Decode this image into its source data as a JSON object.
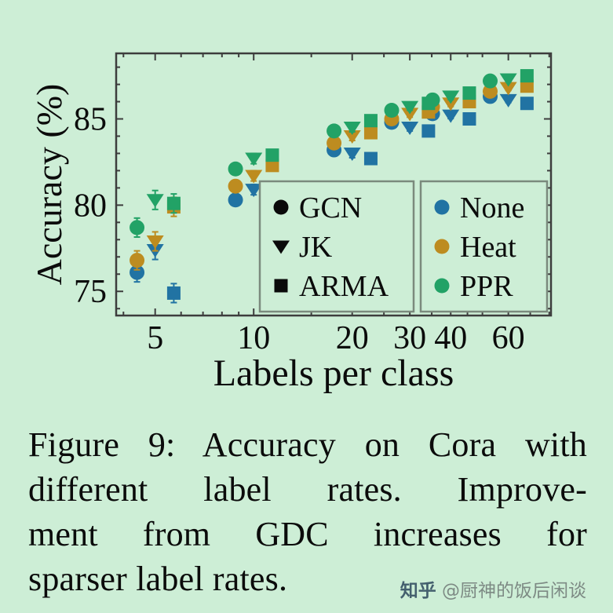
{
  "colors": {
    "background": "#cdeed6",
    "frame": "#3d3d3d",
    "legend_border": "#7b8a7d",
    "text": "#0b0b0b",
    "legend_marker": "#0a0a0a",
    "watermark": "#7d8a84",
    "watermark_logo": "#44606e",
    "none": "#2173a3",
    "heat": "#bd8c20",
    "ppr": "#22a266"
  },
  "figure": {
    "caption_lines": [
      "Figure 9: Accuracy on Cora with",
      "different label rates.  Improve-",
      "ment from GDC increases for",
      "sparser label rates."
    ],
    "watermark_logo": "知乎",
    "watermark_text": " @厨神的饭后闲谈"
  },
  "chart_data": {
    "type": "scatter",
    "title": "",
    "xlabel": "Labels per class",
    "ylabel": "Accuracy (%)",
    "x_scale": "log",
    "xlim": [
      3.8,
      81
    ],
    "ylim": [
      73.6,
      88.8
    ],
    "x_ticks": [
      5,
      10,
      20,
      30,
      40,
      60
    ],
    "y_ticks": [
      75,
      80,
      85
    ],
    "x_minor_ticks": [
      4,
      6,
      7,
      8,
      9,
      15,
      25,
      35,
      45,
      50,
      70,
      80
    ],
    "y_minor_ticks": [
      74,
      76,
      77,
      78,
      79,
      81,
      82,
      83,
      84,
      86,
      87,
      88
    ],
    "categories": [
      5,
      10,
      20,
      30,
      40,
      60
    ],
    "errors": [
      0.55,
      0.3,
      0.25,
      0.2,
      0.18,
      0.15
    ],
    "series": [
      {
        "name": "GCN-None",
        "model": "GCN",
        "diffusion": "None",
        "marker": "circle",
        "color_key": "none",
        "values": [
          76.1,
          80.3,
          83.2,
          84.8,
          85.3,
          86.3
        ]
      },
      {
        "name": "JK-None",
        "model": "JK",
        "diffusion": "None",
        "marker": "triangle",
        "color_key": "none",
        "values": [
          77.4,
          80.9,
          83.0,
          84.5,
          85.2,
          86.1
        ]
      },
      {
        "name": "ARMA-None",
        "model": "ARMA",
        "diffusion": "None",
        "marker": "square",
        "color_key": "none",
        "values": [
          74.9,
          79.8,
          82.7,
          84.3,
          85.0,
          85.9
        ]
      },
      {
        "name": "GCN-Heat",
        "model": "GCN",
        "diffusion": "Heat",
        "marker": "circle",
        "color_key": "heat",
        "values": [
          76.8,
          81.1,
          83.6,
          85.0,
          85.7,
          86.6
        ]
      },
      {
        "name": "JK-Heat",
        "model": "JK",
        "diffusion": "Heat",
        "marker": "triangle",
        "color_key": "heat",
        "values": [
          77.9,
          81.7,
          84.0,
          85.3,
          85.9,
          86.8
        ]
      },
      {
        "name": "ARMA-Heat",
        "model": "ARMA",
        "diffusion": "Heat",
        "marker": "square",
        "color_key": "heat",
        "values": [
          79.9,
          82.3,
          84.2,
          85.4,
          86.0,
          86.9
        ]
      },
      {
        "name": "GCN-PPR",
        "model": "GCN",
        "diffusion": "PPR",
        "marker": "circle",
        "color_key": "ppr",
        "values": [
          78.7,
          82.1,
          84.3,
          85.5,
          86.1,
          87.2
        ]
      },
      {
        "name": "JK-PPR",
        "model": "JK",
        "diffusion": "PPR",
        "marker": "triangle",
        "color_key": "ppr",
        "values": [
          80.3,
          82.7,
          84.5,
          85.7,
          86.3,
          87.3
        ]
      },
      {
        "name": "ARMA-PPR",
        "model": "ARMA",
        "diffusion": "PPR",
        "marker": "square",
        "color_key": "ppr",
        "values": [
          80.1,
          82.9,
          84.9,
          85.9,
          86.5,
          87.5
        ]
      }
    ],
    "legend_models": [
      {
        "label": "GCN",
        "marker": "circle"
      },
      {
        "label": "JK",
        "marker": "triangle"
      },
      {
        "label": "ARMA",
        "marker": "square"
      }
    ],
    "legend_diffusions": [
      {
        "label": "None",
        "color_key": "none"
      },
      {
        "label": "Heat",
        "color_key": "heat"
      },
      {
        "label": "PPR",
        "color_key": "ppr"
      }
    ],
    "legend_position": "lower right (two boxes inside axes)",
    "grid": false
  }
}
